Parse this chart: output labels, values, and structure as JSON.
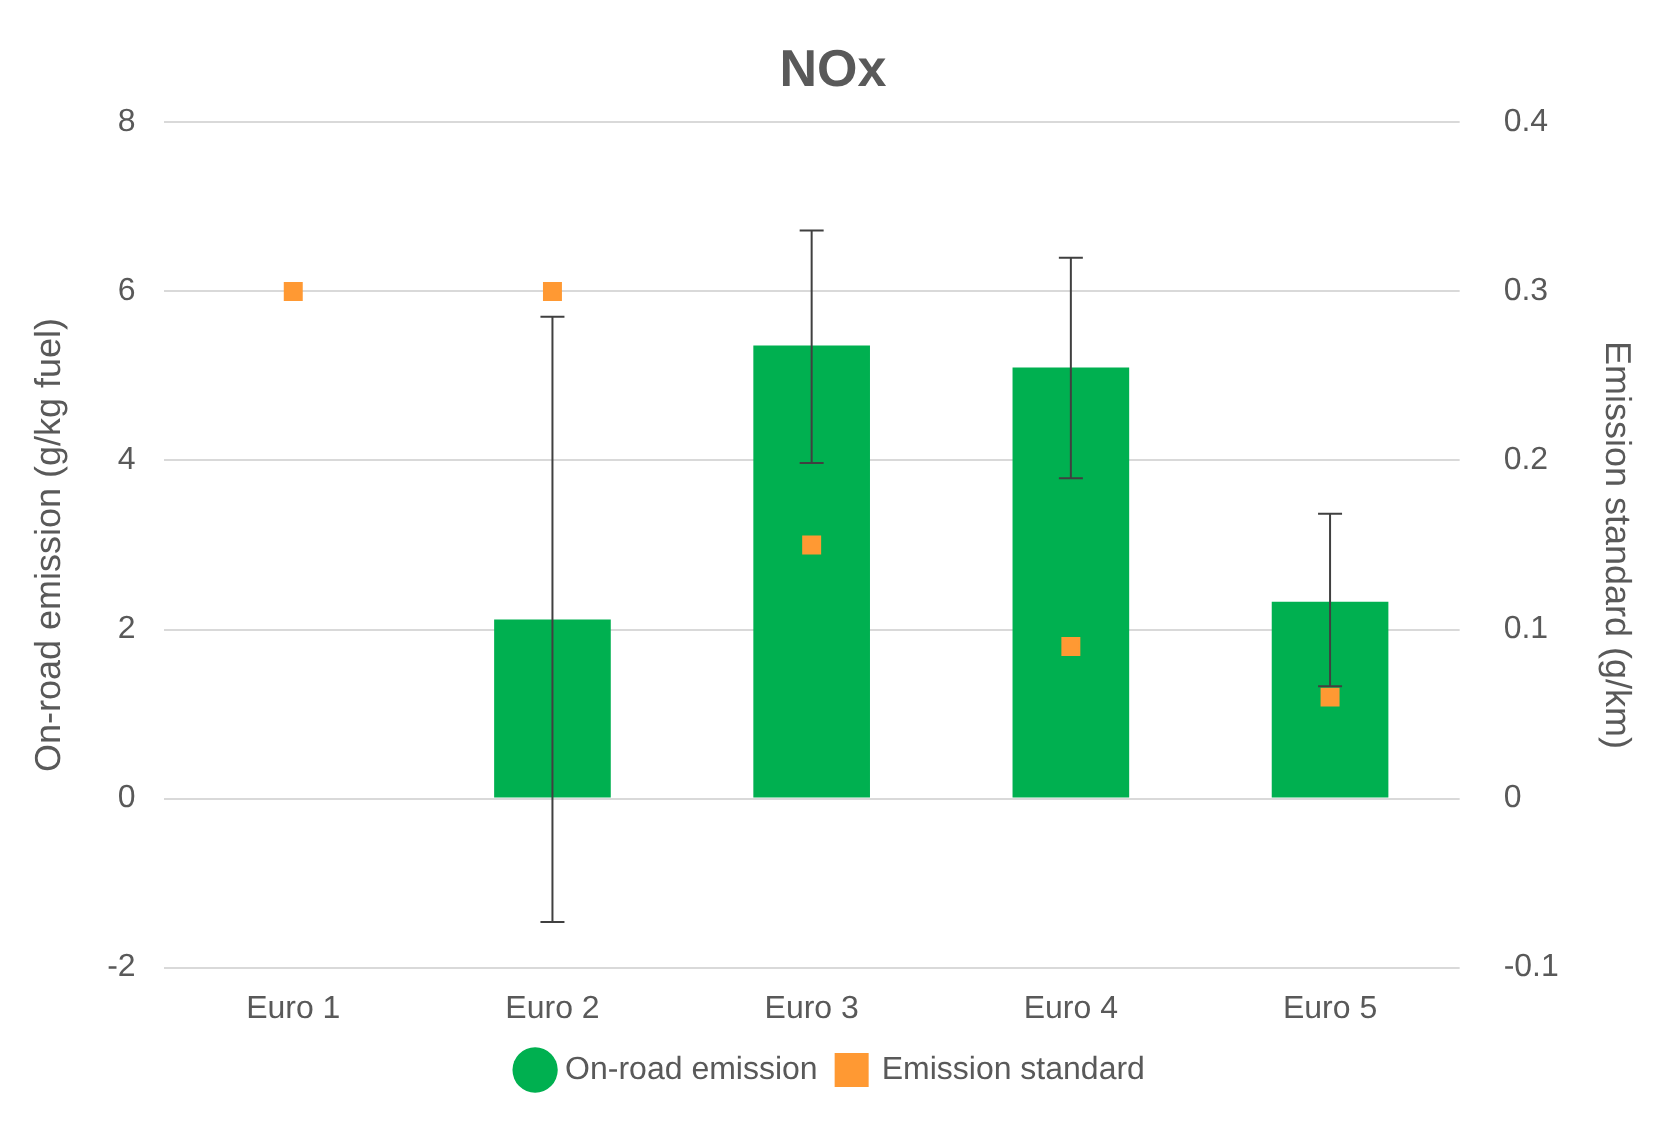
{
  "chart_data": {
    "type": "bar",
    "title": "NOx",
    "ylabel": "On-road emission (g/kg fuel)",
    "y2label": "Emission standard (g/km)",
    "categories": [
      "Euro 1",
      "Euro 2",
      "Euro 3",
      "Euro 4",
      "Euro 5"
    ],
    "series": [
      {
        "name": "On-road emission",
        "color": "#00b050",
        "values": [
          null,
          2.12,
          5.36,
          5.1,
          2.33
        ],
        "errors": [
          null,
          [
            -1.46,
            5.7
          ],
          [
            3.97,
            6.72
          ],
          [
            3.79,
            6.4
          ],
          [
            1.33,
            3.37
          ]
        ]
      },
      {
        "name": "Emission standard",
        "type": "scatter",
        "axis": "y2",
        "color": "#ff9933",
        "marker": "square",
        "x": [
          "Euro 1",
          "Euro 2",
          "Euro 3",
          "Euro 4",
          "Euro 5"
        ],
        "values": [
          0.3,
          0.3,
          0.15,
          0.09,
          0.06
        ]
      }
    ],
    "ylim": [
      -2,
      8
    ],
    "yticks": [
      -2,
      0,
      2,
      4,
      6,
      8
    ],
    "y2lim": [
      -0.1,
      0.4
    ],
    "y2ticks": [
      -0.1,
      0,
      0.1,
      0.2,
      0.3,
      0.4
    ],
    "grid": "y",
    "legend": "bottom"
  }
}
